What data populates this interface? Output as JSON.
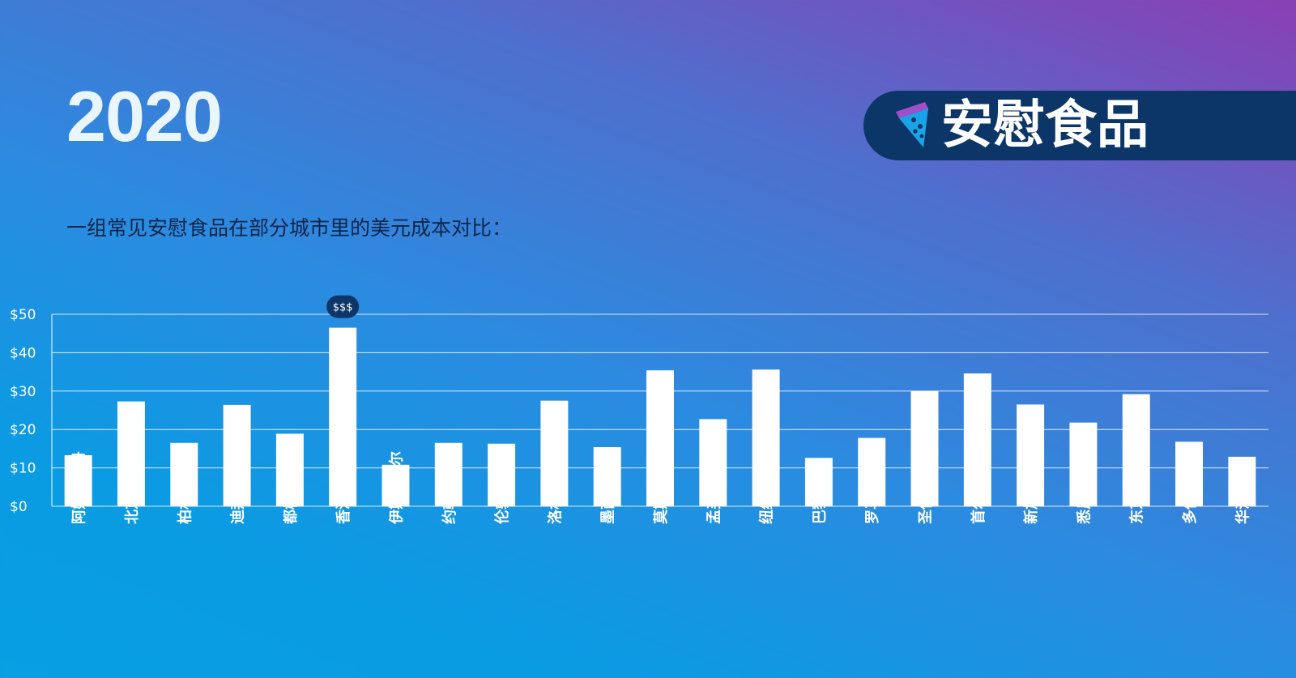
{
  "header": {
    "year": "2020",
    "badge_title": "安慰食品",
    "badge_icon": "pizza-slice-icon",
    "subtitle": "一组常见安慰食品在部分城市里的美元成本对比："
  },
  "colors": {
    "bar": "#ffffff",
    "gridline": "#ffffff",
    "badge_bg": "#0d3668",
    "annotation_bg": "#0d3668"
  },
  "chart_data": {
    "type": "bar",
    "title": "",
    "xlabel": "",
    "ylabel": "",
    "ylim": [
      0,
      50
    ],
    "yticks": [
      0,
      10,
      20,
      30,
      40,
      50
    ],
    "ytick_labels": [
      "$0",
      "$10",
      "$20",
      "$30",
      "$40",
      "$50"
    ],
    "grid": true,
    "categories": [
      "阿姆斯特丹",
      "北京",
      "柏林",
      "迪拜",
      "都柏林",
      "香港",
      "伊斯坦布尔",
      "约翰内斯堡",
      "伦敦",
      "洛杉矶",
      "墨西哥城",
      "莫斯科",
      "孟买",
      "纽约",
      "巴黎",
      "罗马",
      "圣保罗",
      "首尔",
      "新加坡",
      "悉尼",
      "东京",
      "多伦多",
      "华沙"
    ],
    "values": [
      13.3,
      27.3,
      16.5,
      26.4,
      18.9,
      46.5,
      10.8,
      16.5,
      16.3,
      27.5,
      15.4,
      35.4,
      22.7,
      35.6,
      12.6,
      17.8,
      30.0,
      34.6,
      26.5,
      21.8,
      29.2,
      16.8,
      12.9
    ],
    "annotations": [
      {
        "category": "香港",
        "text": "$$$"
      }
    ]
  }
}
